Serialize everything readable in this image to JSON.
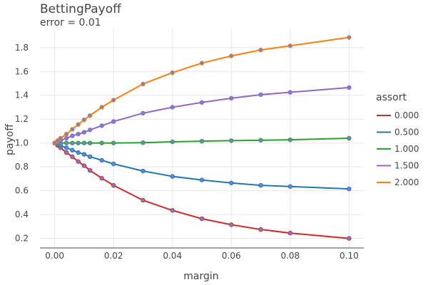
{
  "chart_data": {
    "type": "line",
    "title": "BettingPayoff",
    "subtitle": "error = 0.01",
    "xlabel": "margin",
    "ylabel": "payoff",
    "xlim": [
      -0.005,
      0.105
    ],
    "ylim": [
      0.12,
      1.96
    ],
    "xticks": [
      0,
      0.02,
      0.04,
      0.06,
      0.08,
      0.1
    ],
    "xtick_labels": [
      "0.00",
      "0.02",
      "0.04",
      "0.06",
      "0.08",
      "0.10"
    ],
    "yticks": [
      0.2,
      0.4,
      0.6,
      0.8,
      1.0,
      1.2,
      1.4,
      1.6,
      1.8
    ],
    "ytick_labels": [
      "0.2",
      "0.4",
      "0.6",
      "0.8",
      "1.0",
      "1.2",
      "1.4",
      "1.6",
      "1.8"
    ],
    "grid": true,
    "legend_title": "assort",
    "legend_position": "right",
    "marker_color": "#6f83d8",
    "x": [
      0,
      0.001,
      0.002,
      0.004,
      0.006,
      0.008,
      0.01,
      0.012,
      0.016,
      0.02,
      0.03,
      0.04,
      0.05,
      0.06,
      0.07,
      0.08,
      0.1
    ],
    "series": [
      {
        "name": "0.000",
        "color": "#d62728",
        "values": [
          1.0,
          0.98,
          0.96,
          0.92,
          0.885,
          0.845,
          0.81,
          0.77,
          0.705,
          0.645,
          0.52,
          0.435,
          0.365,
          0.315,
          0.275,
          0.245,
          0.2
        ]
      },
      {
        "name": "0.500",
        "color": "#1f77b4",
        "values": [
          1.0,
          0.99,
          0.98,
          0.96,
          0.94,
          0.92,
          0.905,
          0.885,
          0.855,
          0.825,
          0.765,
          0.72,
          0.69,
          0.665,
          0.645,
          0.635,
          0.615
        ]
      },
      {
        "name": "1.000",
        "color": "#2ca02c",
        "values": [
          1.0,
          1.0,
          1.0,
          1.0,
          1.0,
          1.0,
          1.0,
          1.0,
          1.0,
          1.0,
          1.003,
          1.01,
          1.015,
          1.02,
          1.023,
          1.027,
          1.04
        ]
      },
      {
        "name": "1.500",
        "color": "#9467bd",
        "values": [
          1.0,
          1.01,
          1.02,
          1.04,
          1.06,
          1.075,
          1.09,
          1.11,
          1.145,
          1.18,
          1.25,
          1.3,
          1.34,
          1.375,
          1.405,
          1.425,
          1.465
        ]
      },
      {
        "name": "2.000",
        "color": "#ff7f0e",
        "values": [
          1.0,
          1.02,
          1.04,
          1.075,
          1.115,
          1.155,
          1.195,
          1.23,
          1.3,
          1.36,
          1.495,
          1.59,
          1.67,
          1.73,
          1.78,
          1.815,
          1.885
        ]
      }
    ]
  }
}
